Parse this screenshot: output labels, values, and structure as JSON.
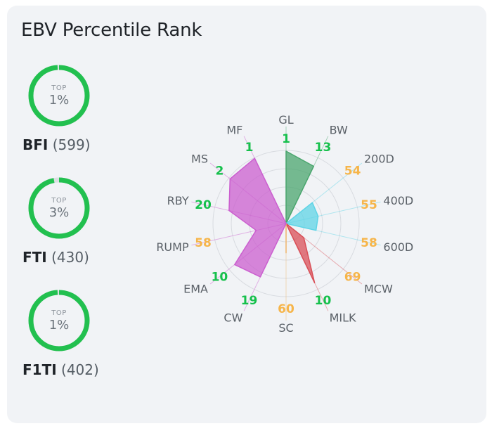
{
  "title": "EBV Percentile Rank",
  "indexes": [
    {
      "top_label": "TOP",
      "value": "1%",
      "percent": 1,
      "name": "BFI",
      "count": "(599)",
      "color": "#22c04f"
    },
    {
      "top_label": "TOP",
      "value": "3%",
      "percent": 3,
      "name": "FTI",
      "count": "(430)",
      "color": "#22c04f"
    },
    {
      "top_label": "TOP",
      "value": "1%",
      "percent": 1,
      "name": "F1TI",
      "count": "(402)",
      "color": "#22c04f"
    }
  ],
  "chart_data": {
    "type": "radar",
    "title": "",
    "axes": [
      "GL",
      "BW",
      "200D",
      "400D",
      "600D",
      "MCW",
      "MILK",
      "SC",
      "CW",
      "EMA",
      "RUMP",
      "RBY",
      "MS",
      "MF"
    ],
    "values": [
      1,
      13,
      54,
      55,
      58,
      69,
      10,
      60,
      19,
      10,
      58,
      20,
      2,
      1
    ],
    "value_scale": "percentile rank; lower is better (1 = top)",
    "groups": [
      {
        "axes": [
          "GL",
          "BW"
        ],
        "color": "#4aa66e"
      },
      {
        "axes": [
          "200D",
          "400D",
          "600D"
        ],
        "color": "#5fd4e6"
      },
      {
        "axes": [
          "MCW",
          "MILK"
        ],
        "color": "#d94f57"
      },
      {
        "axes": [
          "SC"
        ],
        "color": "#f0b56a"
      },
      {
        "axes": [
          "CW",
          "EMA",
          "RUMP",
          "RBY",
          "MS",
          "MF"
        ],
        "color": "#cb5fcf"
      }
    ],
    "good_color": "#16c04c",
    "warn_color": "#f6b54a",
    "label_color": "#5b6168",
    "grid": true
  }
}
